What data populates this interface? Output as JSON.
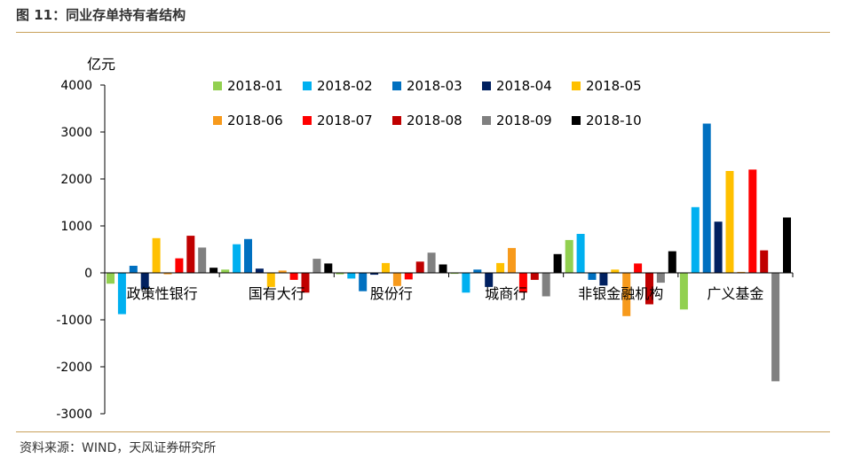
{
  "figure": {
    "title": "图 11：同业存单持有者结构",
    "source": "资料来源：WIND，天风证券研究所"
  },
  "chart_data": {
    "type": "bar",
    "unit_label": "亿元",
    "ylim": [
      -3000,
      4000
    ],
    "yticks": [
      -3000,
      -2000,
      -1000,
      0,
      1000,
      2000,
      3000,
      4000
    ],
    "ytick_labels": [
      "-3000",
      "-2000",
      "-1000",
      "0",
      "1000",
      "2000",
      "3000",
      "4000"
    ],
    "grid": false,
    "legend_position": "top",
    "categories": [
      "政策性银行",
      "国有大行",
      "股份行",
      "城商行",
      "非银金融机构",
      "广义基金"
    ],
    "series": [
      {
        "name": "2018-01",
        "color": "#92d050",
        "values": [
          -230,
          70,
          -30,
          -20,
          700,
          -780
        ]
      },
      {
        "name": "2018-02",
        "color": "#00b0f0",
        "values": [
          -880,
          610,
          -120,
          -420,
          830,
          1400
        ]
      },
      {
        "name": "2018-03",
        "color": "#0070c0",
        "values": [
          150,
          720,
          -390,
          70,
          -150,
          3180
        ]
      },
      {
        "name": "2018-04",
        "color": "#002060",
        "values": [
          -350,
          90,
          -40,
          -300,
          -270,
          1090
        ]
      },
      {
        "name": "2018-05",
        "color": "#ffc000",
        "values": [
          740,
          -300,
          210,
          210,
          70,
          2170
        ]
      },
      {
        "name": "2018-06",
        "color": "#f79a1c",
        "values": [
          -30,
          50,
          -280,
          530,
          -920,
          20
        ]
      },
      {
        "name": "2018-07",
        "color": "#ff0000",
        "values": [
          310,
          -150,
          -140,
          -420,
          200,
          2200
        ]
      },
      {
        "name": "2018-08",
        "color": "#c00000",
        "values": [
          790,
          -420,
          240,
          -150,
          -670,
          480
        ]
      },
      {
        "name": "2018-09",
        "color": "#808080",
        "values": [
          540,
          300,
          430,
          -500,
          -210,
          -2310
        ]
      },
      {
        "name": "2018-10",
        "color": "#000000",
        "values": [
          110,
          200,
          180,
          400,
          460,
          1180
        ]
      }
    ]
  }
}
